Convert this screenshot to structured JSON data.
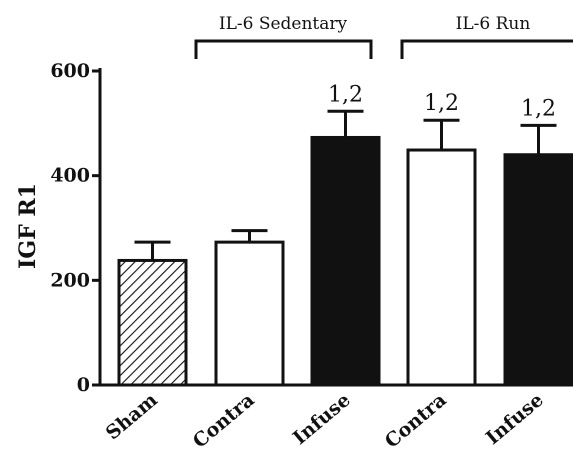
{
  "chart_data": {
    "type": "bar",
    "ylabel": "IGF R1",
    "ylim": [
      0,
      600
    ],
    "yticks": [
      0,
      200,
      400,
      600
    ],
    "categories": [
      "Sham",
      "Contra",
      "Infuse",
      "Contra",
      "Infuse"
    ],
    "values": [
      238,
      273,
      473,
      449,
      440
    ],
    "errors": [
      35,
      22,
      50,
      57,
      56
    ],
    "fills": [
      "hatched",
      "white",
      "black",
      "white",
      "black"
    ],
    "annotations": [
      "",
      "",
      "1,2",
      "1,2",
      "1,2"
    ],
    "groups": [
      {
        "label": "IL-6 Sedentary",
        "categories": [
          1,
          2
        ]
      },
      {
        "label": "IL-6 Run",
        "categories": [
          3,
          4
        ]
      }
    ],
    "grid": false,
    "colors": {
      "bar_dark": "#111111",
      "bar_light": "#ffffff",
      "stroke": "#111111"
    }
  }
}
